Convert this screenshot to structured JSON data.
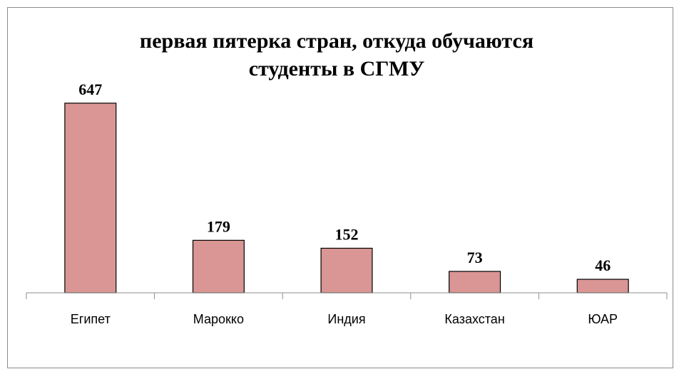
{
  "chart_data": {
    "type": "bar",
    "title": "первая пятерка стран, откуда обучаются студенты в СГМУ",
    "categories": [
      "Египет",
      "Марокко",
      "Индия",
      "Казахстан",
      "ЮАР"
    ],
    "values": [
      647,
      179,
      152,
      73,
      46
    ],
    "color": "#d99694",
    "ylim": [
      0,
      700
    ],
    "grid": false
  }
}
